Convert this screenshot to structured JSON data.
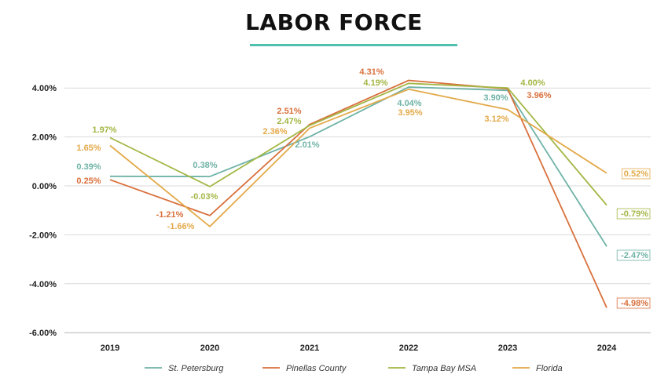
{
  "title": "LABOR FORCE",
  "chart_data": {
    "type": "line",
    "title": "LABOR FORCE",
    "xlabel": "",
    "ylabel": "",
    "categories": [
      "2019",
      "2020",
      "2021",
      "2022",
      "2023",
      "2024"
    ],
    "ylim": [
      -6,
      4.5
    ],
    "yticks": [
      4,
      2,
      0,
      -2,
      -4,
      -6
    ],
    "ytick_labels": [
      "4.00%",
      "2.00%",
      "0.00%",
      "-2.00%",
      "-4.00%",
      "-6.00%"
    ],
    "grid": "horizontal",
    "legend_position": "bottom",
    "series": [
      {
        "name": "St. Petersburg",
        "color": "#6fb3a6",
        "values": [
          0.39,
          0.38,
          2.01,
          4.04,
          3.9,
          -2.47
        ],
        "labels": [
          "0.39%",
          "0.38%",
          "2.01%",
          "4.04%",
          "3.90%",
          "-2.47%"
        ]
      },
      {
        "name": "Pinellas County",
        "color": "#d9703c",
        "values": [
          0.25,
          -1.21,
          2.51,
          4.31,
          3.96,
          -4.98
        ],
        "labels": [
          "0.25%",
          "-1.21%",
          "2.51%",
          "4.31%",
          "3.96%",
          "-4.98%"
        ]
      },
      {
        "name": "Tampa Bay MSA",
        "color": "#a3b745",
        "values": [
          1.97,
          -0.03,
          2.47,
          4.19,
          4.0,
          -0.79
        ],
        "labels": [
          "1.97%",
          "-0.03%",
          "2.47%",
          "4.19%",
          "4.00%",
          "-0.79%"
        ]
      },
      {
        "name": "Florida",
        "color": "#e3aa4a",
        "values": [
          1.65,
          -1.66,
          2.36,
          3.95,
          3.12,
          0.52
        ],
        "labels": [
          "1.65%",
          "-1.66%",
          "2.36%",
          "3.95%",
          "3.12%",
          "0.52%"
        ]
      }
    ]
  }
}
